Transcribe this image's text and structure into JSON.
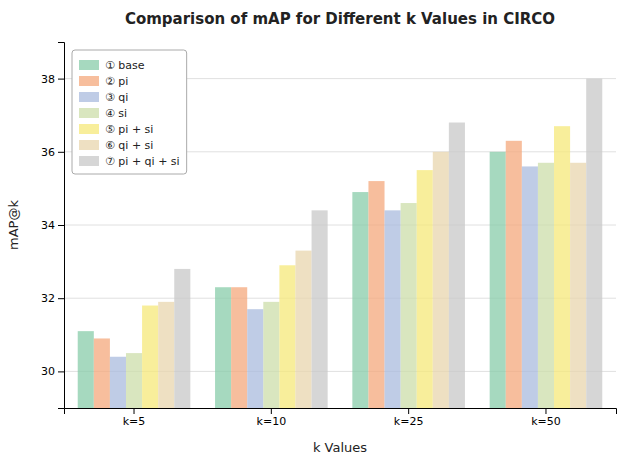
{
  "chart_data": {
    "type": "bar",
    "title": "Comparison of mAP for Different k Values in CIRCO",
    "xlabel": "k Values",
    "ylabel": "mAP@k",
    "categories": [
      "k=5",
      "k=10",
      "k=25",
      "k=50"
    ],
    "series": [
      {
        "name": "① base",
        "color": "#88CCAA",
        "values": [
          31.1,
          32.3,
          34.9,
          36.0
        ]
      },
      {
        "name": "② pi",
        "color": "#F4A87C",
        "values": [
          30.9,
          32.3,
          35.2,
          36.3
        ]
      },
      {
        "name": "③ qi",
        "color": "#AABBDD",
        "values": [
          30.4,
          31.7,
          34.4,
          35.6
        ]
      },
      {
        "name": "④ si",
        "color": "#CCDDAA",
        "values": [
          30.5,
          31.9,
          34.6,
          35.7
        ]
      },
      {
        "name": "⑤ pi + si",
        "color": "#F5E87A",
        "values": [
          31.8,
          32.9,
          35.5,
          36.7
        ]
      },
      {
        "name": "⑥ qi + si",
        "color": "#E8D5AD",
        "values": [
          31.9,
          33.3,
          36.0,
          35.7
        ]
      },
      {
        "name": "⑦ pi + qi + si",
        "color": "#C8C8C8",
        "values": [
          32.8,
          34.4,
          36.8,
          38.0
        ]
      }
    ],
    "ylim": [
      29.0,
      39.0
    ],
    "yticks": [
      30,
      32,
      34,
      36,
      38
    ],
    "grid": true,
    "legend": "upper left"
  }
}
